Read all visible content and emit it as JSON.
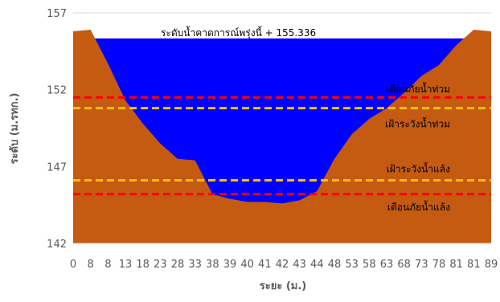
{
  "chart_data": {
    "type": "area",
    "x_tick_labels": [
      "0",
      "8",
      "8",
      "13",
      "18",
      "23",
      "28",
      "33",
      "38",
      "39",
      "40",
      "41",
      "42",
      "43",
      "44",
      "48",
      "53",
      "58",
      "63",
      "68",
      "73",
      "78",
      "81",
      "81",
      "89"
    ],
    "ground_profile": {
      "x_index": [
        0,
        1,
        2,
        3,
        4,
        5,
        6,
        7,
        8,
        9,
        10,
        11,
        12,
        13,
        14,
        15,
        16,
        17,
        18,
        19,
        20,
        21,
        22,
        23,
        24
      ],
      "elevation": [
        155.8,
        155.9,
        153.7,
        151.3,
        149.8,
        148.5,
        147.5,
        147.4,
        145.2,
        144.9,
        144.7,
        144.7,
        144.6,
        144.8,
        145.4,
        147.5,
        149.1,
        150.1,
        150.8,
        151.8,
        152.9,
        153.6,
        154.9,
        155.9,
        155.8
      ],
      "color": "#C55A11"
    },
    "water_level": {
      "label": "ระดับน้ำคาดการณ์พรุ่งนี้ + 155.336",
      "value": 155.336,
      "color": "#0000FF"
    },
    "threshold_lines": [
      {
        "label": "เตือนภัยน้ำท่วม",
        "value": 151.5,
        "color": "#FF0000"
      },
      {
        "label": "เฝ้าระวังน้ำท่วม",
        "value": 150.8,
        "color": "#FFC000"
      },
      {
        "label": "เฝ้าระวังน้ำแล้ง",
        "value": 146.1,
        "color": "#FFC000"
      },
      {
        "label": "เตือนภัยน้ำแล้ง",
        "value": 145.2,
        "color": "#FF0000"
      }
    ],
    "y_ticks": [
      142,
      147,
      152,
      157
    ],
    "ylim": [
      142,
      157
    ],
    "xlabel": "ระยะ (ม.)",
    "ylabel": "ระดับ (ม.รทก.)",
    "grid": "horizontal"
  }
}
